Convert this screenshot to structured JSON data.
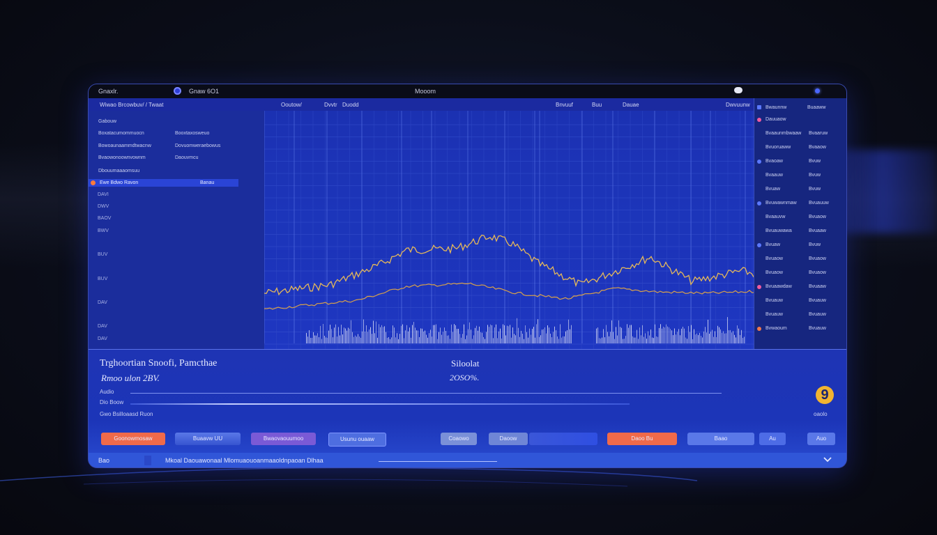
{
  "titlebar": {
    "app_name": "Gnaxlr.",
    "tab_label": "Gnaw 6O1",
    "center_title": "Mooom"
  },
  "toolbar": {
    "left_label": "Wiwao Brcowbuv/ / Twaat",
    "col_labels": [
      "Ooutow/",
      "Dvvtr",
      "Duodd",
      "Bnvuuf",
      "Buu",
      "Dauae",
      "Dwvuunw"
    ]
  },
  "left_panel": {
    "header": "Gabouw",
    "rows": [
      {
        "a": "Boxatacumommuocn",
        "b": "Booxtaxosweuo"
      },
      {
        "a": "Bowoaunaammdtwacnw",
        "b": "Dovuomweraebowus"
      },
      {
        "a": "Bvaowonoownvownm",
        "b": "Daouvmcu"
      },
      {
        "a": "Dbouumaaaomsuu",
        "b": ""
      }
    ],
    "highlight_row": {
      "a": "Ewe Bdwo Ravon",
      "b": "Banau"
    },
    "y_ticks": [
      "DAVI",
      "DWV",
      "BAOV",
      "BWV",
      "BUV",
      "BUV",
      "DAV",
      "DAV",
      "DAV"
    ]
  },
  "right_panel": {
    "header": [
      "Bwaunnw",
      "Buaaww"
    ],
    "rows": [
      {
        "a": "Dauuaow",
        "b": ""
      },
      {
        "a": "Bvaaunmbwaaw",
        "b": "Bvaaruw"
      },
      {
        "a": "Bvuoruaww",
        "b": "Bvaaow"
      },
      {
        "a": "Bvaoaw",
        "b": "Bvuw"
      },
      {
        "a": "Bvaauw",
        "b": "Bvuw"
      },
      {
        "a": "Bvuaw",
        "b": "Bvuw"
      },
      {
        "a": "Bvuwawnmaw",
        "b": "Bvuauuw"
      },
      {
        "a": "Bvaauvw",
        "b": "Bvuaow"
      },
      {
        "a": "Bvuauwawa",
        "b": "Bvuaaw"
      },
      {
        "a": "Bvuaw",
        "b": "Bvuw"
      },
      {
        "a": "Bvuaow",
        "b": "Bvuaow"
      },
      {
        "a": "Bvuaow",
        "b": "Bvuaow"
      },
      {
        "a": "Bvuaawdaw",
        "b": "Bvuaaw"
      },
      {
        "a": "Bvuauw",
        "b": "Bvuauw"
      },
      {
        "a": "Bvuauw",
        "b": "Bvuauw"
      },
      {
        "a": "Bvwaoum",
        "b": "Bvuauw"
      }
    ]
  },
  "info": {
    "title": "Trghoortian Snoofi, Pamcthae",
    "subtitle": "Rmoo ulon 2BV.",
    "right_title": "Siloolat",
    "right_value": "2OSO%.",
    "label1": "Audio",
    "label2": "Dio Boow",
    "label3": "Gwo Bsilloaasd Ruon",
    "right_label": "oaolo",
    "badge_glyph": "9"
  },
  "buttons": [
    {
      "label": "Goonowmosaw"
    },
    {
      "label": "Buaavw UU"
    },
    {
      "label": "Bwaovaouumoo"
    },
    {
      "label": "Usunu ouaaw"
    },
    {
      "label": "Coaowo"
    },
    {
      "label": "Daoow"
    },
    {
      "label": ""
    },
    {
      "label": "Daoo Bu"
    },
    {
      "label": "Baao"
    },
    {
      "label": "Au"
    },
    {
      "label": "Auo"
    }
  ],
  "statusbar": {
    "left": "Bao",
    "center": "Mkoal Daouawonaal Mlomuaouoanmaaoldnpaoan Dlhaa"
  },
  "colors": {
    "frame_bg": "#1a2a8a",
    "chart_bg": "#1c33b8",
    "price_line": "#e5b85a",
    "trend_line": "#d9a24a",
    "volume": "#d9dcf5",
    "accent_orange": "#f06a4a",
    "accent_purple": "#7a5ad6",
    "badge_yellow": "#f2b431"
  },
  "icons": {
    "tab": "circle-icon",
    "chat": "chat-bubble-icon",
    "window": "window-dot-icon",
    "scroll": "scroll-down-icon"
  }
}
